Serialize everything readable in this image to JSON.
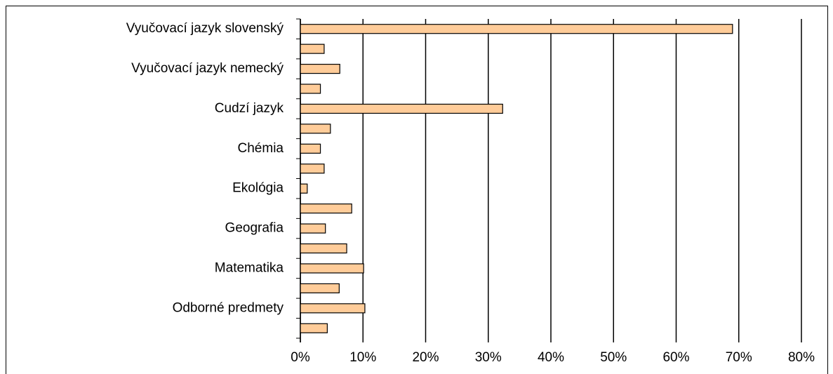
{
  "chart_data": {
    "type": "barh",
    "categories": [
      "Vyučovací jazyk slovenský",
      null,
      "Vyučovací jazyk nemecký",
      null,
      "Cudzí jazyk",
      null,
      "Chémia",
      null,
      "Ekológia",
      null,
      "Geografia",
      null,
      "Matematika",
      null,
      "Odborné predmety",
      null
    ],
    "values": [
      69,
      3.8,
      6.3,
      3.2,
      32.3,
      4.8,
      3.2,
      3.8,
      1.1,
      8.2,
      4,
      7.4,
      10.1,
      6.2,
      10.3,
      4.3
    ],
    "color": "#ffcc99",
    "xlim": [
      0,
      80
    ],
    "xticks": [
      {
        "value": 0,
        "label": "0%"
      },
      {
        "value": 10,
        "label": "10%"
      },
      {
        "value": 20,
        "label": "20%"
      },
      {
        "value": 30,
        "label": "30%"
      },
      {
        "value": 40,
        "label": "40%"
      },
      {
        "value": 50,
        "label": "50%"
      },
      {
        "value": 60,
        "label": "60%"
      },
      {
        "value": 70,
        "label": "70%"
      },
      {
        "value": 80,
        "label": "80%"
      }
    ],
    "grid": true
  }
}
